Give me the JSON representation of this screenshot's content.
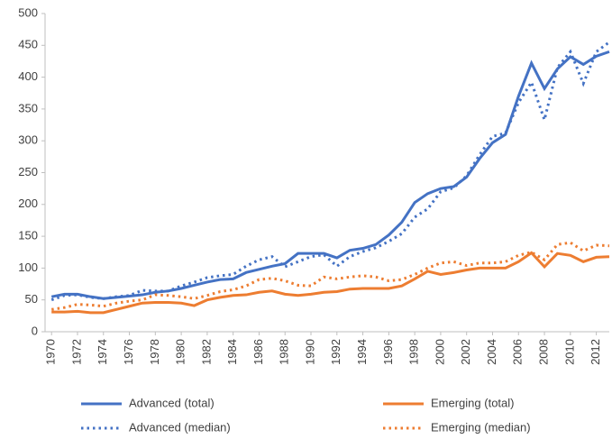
{
  "chart_data": {
    "type": "line",
    "x": [
      1970,
      1971,
      1972,
      1973,
      1974,
      1975,
      1976,
      1977,
      1978,
      1979,
      1980,
      1981,
      1982,
      1983,
      1984,
      1985,
      1986,
      1987,
      1988,
      1989,
      1990,
      1991,
      1992,
      1993,
      1994,
      1995,
      1996,
      1997,
      1998,
      1999,
      2000,
      2001,
      2002,
      2003,
      2004,
      2005,
      2006,
      2007,
      2008,
      2009,
      2010,
      2011,
      2012,
      2013
    ],
    "xlim": [
      1969.5,
      2013
    ],
    "xticks": [
      1970,
      1972,
      1974,
      1976,
      1978,
      1980,
      1982,
      1984,
      1986,
      1988,
      1990,
      1992,
      1994,
      1996,
      1998,
      2000,
      2002,
      2004,
      2006,
      2008,
      2010,
      2012
    ],
    "ylim": [
      0,
      500
    ],
    "yticks": [
      0,
      50,
      100,
      150,
      200,
      250,
      300,
      350,
      400,
      450,
      500
    ],
    "series": [
      {
        "name": "Advanced (total)",
        "color": "#4472c4",
        "style": "solid",
        "values": [
          55,
          59,
          59,
          55,
          52,
          54,
          56,
          58,
          62,
          64,
          68,
          73,
          78,
          82,
          83,
          93,
          98,
          103,
          107,
          123,
          123,
          123,
          116,
          128,
          131,
          137,
          152,
          172,
          203,
          217,
          225,
          228,
          243,
          272,
          297,
          310,
          370,
          422,
          382,
          413,
          432,
          420,
          433,
          440
        ]
      },
      {
        "name": "Emerging (total)",
        "color": "#ed7d31",
        "style": "solid",
        "values": [
          31,
          31,
          32,
          30,
          30,
          35,
          40,
          45,
          46,
          46,
          45,
          41,
          50,
          54,
          57,
          58,
          62,
          64,
          59,
          57,
          59,
          62,
          63,
          67,
          68,
          68,
          68,
          72,
          83,
          95,
          90,
          93,
          97,
          100,
          100,
          100,
          110,
          124,
          102,
          123,
          120,
          110,
          117,
          118
        ]
      },
      {
        "name": "Advanced (median)",
        "color": "#4472c4",
        "style": "dotted",
        "values": [
          50,
          57,
          58,
          54,
          52,
          55,
          57,
          65,
          64,
          64,
          72,
          78,
          85,
          88,
          90,
          103,
          113,
          118,
          102,
          110,
          118,
          121,
          103,
          118,
          126,
          132,
          142,
          154,
          180,
          193,
          220,
          226,
          245,
          278,
          307,
          312,
          360,
          392,
          333,
          415,
          440,
          390,
          440,
          455
        ]
      },
      {
        "name": "Emerging (median)",
        "color": "#ed7d31",
        "style": "dotted",
        "values": [
          35,
          38,
          43,
          42,
          40,
          45,
          48,
          50,
          58,
          57,
          55,
          52,
          57,
          63,
          66,
          72,
          82,
          84,
          80,
          73,
          72,
          86,
          83,
          86,
          88,
          86,
          80,
          82,
          90,
          100,
          108,
          110,
          104,
          108,
          108,
          110,
          120,
          125,
          113,
          137,
          140,
          127,
          136,
          135
        ]
      }
    ]
  }
}
